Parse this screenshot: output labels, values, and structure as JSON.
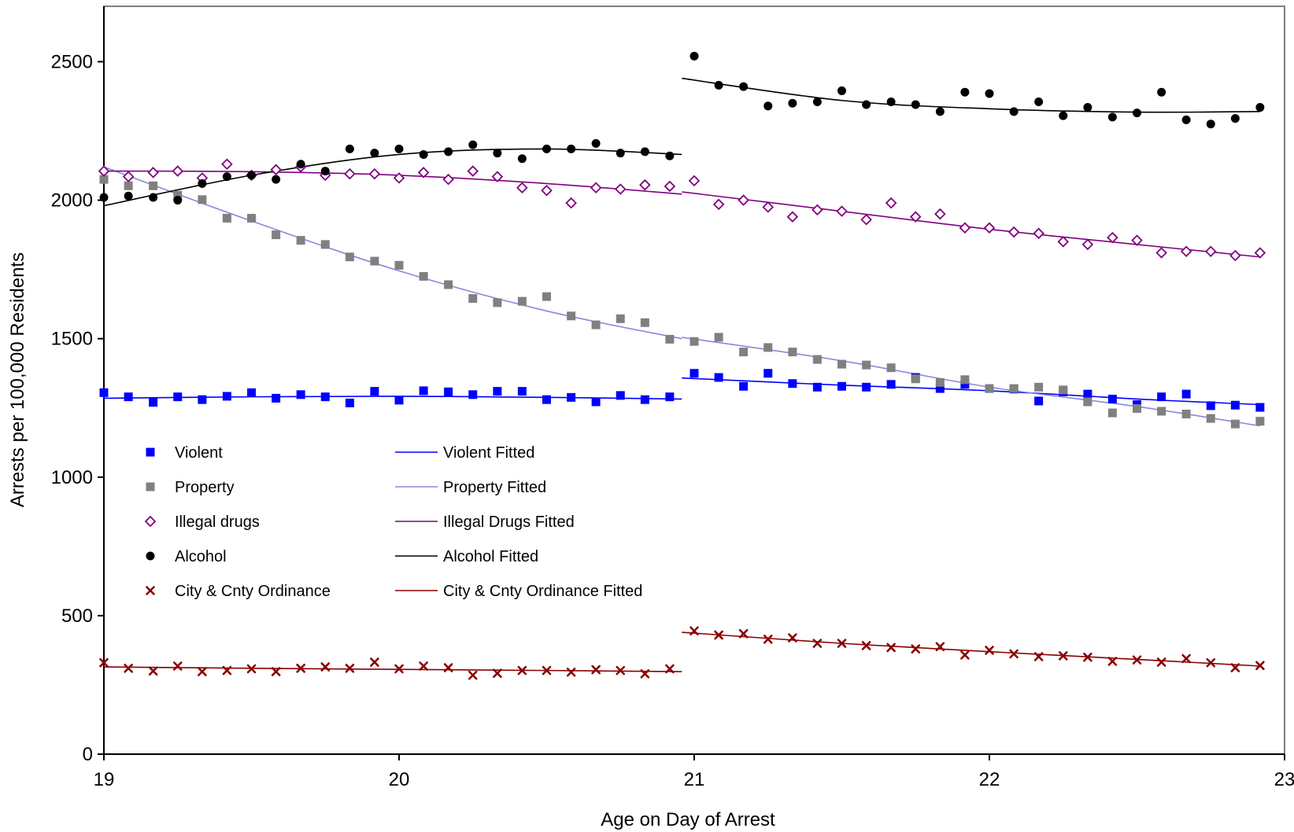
{
  "chart_data": {
    "type": "scatter",
    "title": "",
    "xlabel": "Age on Day of Arrest",
    "ylabel": "Arrests per 100,000 Residents",
    "xlim": [
      19,
      23
    ],
    "ylim": [
      0,
      2700
    ],
    "x_ticks": [
      "19",
      "20",
      "21",
      "22",
      "23"
    ],
    "y_ticks": [
      "0",
      "500",
      "1000",
      "1500",
      "2000",
      "2500"
    ],
    "grid": false,
    "legend_placement": "center-left",
    "x": [
      19.0,
      19.083,
      19.167,
      19.25,
      19.333,
      19.417,
      19.5,
      19.583,
      19.667,
      19.75,
      19.833,
      19.917,
      20.0,
      20.083,
      20.167,
      20.25,
      20.333,
      20.417,
      20.5,
      20.583,
      20.667,
      20.75,
      20.833,
      20.917,
      21.0,
      21.083,
      21.167,
      21.25,
      21.333,
      21.417,
      21.5,
      21.583,
      21.667,
      21.75,
      21.833,
      21.917,
      22.0,
      22.083,
      22.167,
      22.25,
      22.333,
      22.417,
      22.5,
      22.583,
      22.667,
      22.75,
      22.833,
      22.917
    ],
    "series": [
      {
        "name": "Violent",
        "marker": "square",
        "color": "#0000FF",
        "values": [
          1305,
          1290,
          1270,
          1290,
          1280,
          1292,
          1305,
          1285,
          1298,
          1290,
          1268,
          1310,
          1278,
          1312,
          1308,
          1298,
          1310,
          1310,
          1280,
          1288,
          1272,
          1295,
          1280,
          1290,
          1375,
          1360,
          1328,
          1375,
          1338,
          1325,
          1328,
          1325,
          1335,
          1360,
          1320,
          1335,
          1320,
          1318,
          1275,
          1308,
          1300,
          1282,
          1262,
          1290,
          1300,
          1258,
          1260,
          1252
        ]
      },
      {
        "name": "Property",
        "marker": "square",
        "color": "#808080",
        "values": [
          2075,
          2052,
          2052,
          2018,
          2002,
          1935,
          1935,
          1875,
          1855,
          1840,
          1795,
          1780,
          1765,
          1725,
          1695,
          1645,
          1630,
          1635,
          1652,
          1582,
          1550,
          1572,
          1558,
          1498,
          1490,
          1505,
          1452,
          1468,
          1452,
          1425,
          1408,
          1405,
          1395,
          1355,
          1342,
          1352,
          1320,
          1320,
          1325,
          1315,
          1272,
          1232,
          1248,
          1238,
          1228,
          1212,
          1192,
          1202
        ]
      },
      {
        "name": "Illegal drugs",
        "marker": "diamond",
        "color": "#800080",
        "values": [
          2105,
          2085,
          2100,
          2105,
          2080,
          2130,
          2090,
          2110,
          2120,
          2090,
          2095,
          2095,
          2080,
          2100,
          2075,
          2105,
          2085,
          2045,
          2035,
          1990,
          2045,
          2040,
          2055,
          2050,
          2070,
          1985,
          2000,
          1975,
          1940,
          1965,
          1960,
          1930,
          1990,
          1940,
          1950,
          1900,
          1900,
          1885,
          1880,
          1850,
          1840,
          1865,
          1855,
          1810,
          1815,
          1815,
          1800,
          1810
        ]
      },
      {
        "name": "Alcohol",
        "marker": "circle",
        "color": "#000000",
        "values": [
          2010,
          2015,
          2010,
          2000,
          2060,
          2085,
          2090,
          2075,
          2130,
          2105,
          2185,
          2170,
          2185,
          2165,
          2175,
          2200,
          2170,
          2150,
          2185,
          2185,
          2205,
          2170,
          2175,
          2160,
          2520,
          2415,
          2410,
          2340,
          2350,
          2355,
          2395,
          2345,
          2355,
          2345,
          2320,
          2390,
          2385,
          2320,
          2355,
          2305,
          2335,
          2300,
          2315,
          2390,
          2290,
          2275,
          2295,
          2335
        ]
      },
      {
        "name": "City & Cnty Ordinance",
        "marker": "x",
        "color": "#8B0000",
        "values": [
          330,
          310,
          300,
          318,
          298,
          302,
          308,
          298,
          310,
          315,
          310,
          332,
          308,
          318,
          312,
          285,
          292,
          302,
          302,
          296,
          305,
          302,
          290,
          308,
          445,
          430,
          435,
          415,
          420,
          400,
          400,
          392,
          385,
          380,
          388,
          358,
          375,
          362,
          352,
          355,
          350,
          335,
          340,
          332,
          345,
          330,
          312,
          320
        ]
      }
    ],
    "fitted": [
      {
        "name": "Violent Fitted",
        "color": "#0000FF",
        "segments": [
          {
            "x": [
              19.0,
              19.5,
              20.0,
              20.5,
              20.958
            ],
            "y": [
              1285,
              1290,
              1292,
              1288,
              1282
            ]
          },
          {
            "x": [
              20.958,
              21.5,
              22.0,
              22.5,
              22.917
            ],
            "y": [
              1358,
              1332,
              1312,
              1282,
              1262
            ]
          }
        ]
      },
      {
        "name": "Property Fitted",
        "color": "#8888DD",
        "segments": [
          {
            "x": [
              19.0,
              19.5,
              20.0,
              20.5,
              20.958
            ],
            "y": [
              2120,
              1925,
              1745,
              1600,
              1500
            ]
          },
          {
            "x": [
              20.958,
              21.5,
              22.0,
              22.5,
              22.917
            ],
            "y": [
              1505,
              1420,
              1325,
              1255,
              1185
            ]
          }
        ]
      },
      {
        "name": "Illegal Drugs Fitted",
        "color": "#800080",
        "segments": [
          {
            "x": [
              19.0,
              19.5,
              20.0,
              20.5,
              20.958
            ],
            "y": [
              2105,
              2103,
              2090,
              2060,
              2022
            ]
          },
          {
            "x": [
              20.958,
              21.5,
              22.0,
              22.5,
              22.917
            ],
            "y": [
              2030,
              1960,
              1895,
              1840,
              1795
            ]
          }
        ]
      },
      {
        "name": "Alcohol Fitted",
        "color": "#000000",
        "segments": [
          {
            "x": [
              19.0,
              19.5,
              20.0,
              20.5,
              20.958
            ],
            "y": [
              1980,
              2090,
              2165,
              2185,
              2165
            ]
          },
          {
            "x": [
              20.958,
              21.5,
              22.0,
              22.5,
              22.917
            ],
            "y": [
              2440,
              2360,
              2330,
              2318,
              2320
            ]
          }
        ]
      },
      {
        "name": "City & Cnty Ordinance Fitted",
        "color": "#8B0000",
        "segments": [
          {
            "x": [
              19.0,
              19.5,
              20.0,
              20.5,
              20.958
            ],
            "y": [
              315,
              310,
              306,
              302,
              298
            ]
          },
          {
            "x": [
              20.958,
              21.5,
              22.0,
              22.5,
              22.917
            ],
            "y": [
              440,
              400,
              370,
              342,
              318
            ]
          }
        ]
      }
    ]
  }
}
